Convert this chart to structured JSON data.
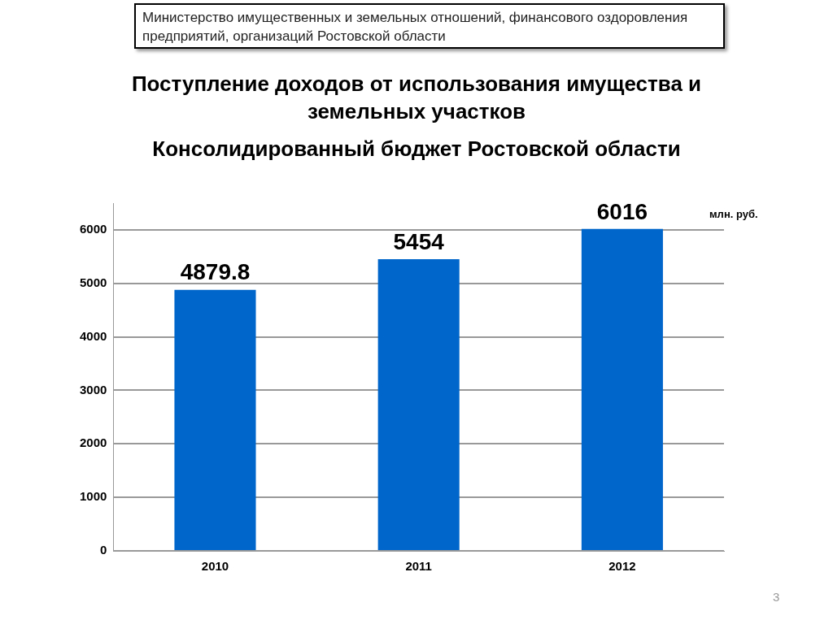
{
  "chart_data": {
    "type": "bar",
    "title": "Поступление доходов от использования имущества и земельных участков",
    "subtitle": "Консолидированный бюджет Ростовской области",
    "categories": [
      "2010",
      "2011",
      "2012"
    ],
    "values": [
      4879.8,
      5454,
      6016
    ],
    "color": "#0066cc",
    "ylim": [
      0,
      6500
    ],
    "yticks": [
      0,
      1000,
      2000,
      3000,
      4000,
      5000,
      6000
    ],
    "grid": "y",
    "data_labels": true,
    "annotations": [
      "Министерство имущественных и земельных отношений, финансового оздоровления предприятий, организаций Ростовской области",
      "млн. руб.",
      "3"
    ]
  }
}
